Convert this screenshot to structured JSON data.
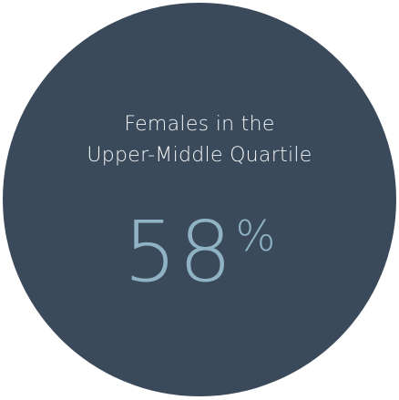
{
  "card": {
    "title_line1": "Females in the",
    "title_line2": "Upper-Middle Quartile",
    "value": "58",
    "unit": "%"
  },
  "colors": {
    "circle": "#3b4a5a",
    "accent": "#8fb3c4",
    "text": "#f3f5f7"
  }
}
